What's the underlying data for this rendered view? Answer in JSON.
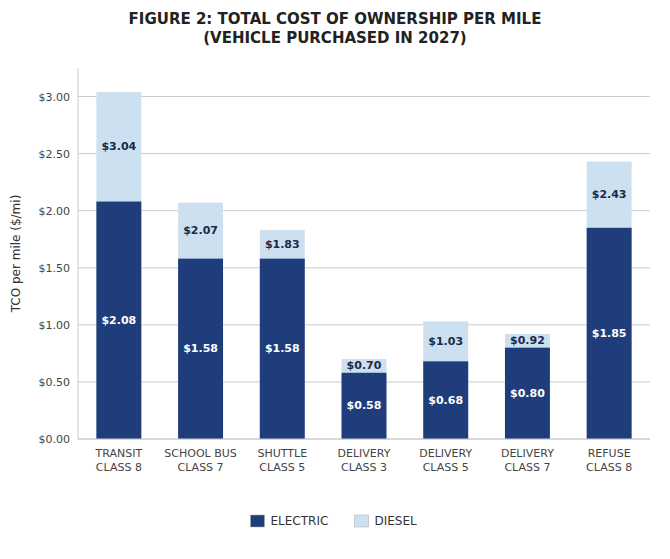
{
  "chart_data": {
    "type": "bar",
    "title": "FIGURE 2: TOTAL COST OF OWNERSHIP PER MILE\n(VEHICLE PURCHASED IN 2027)",
    "ylabel": "TCO per mile ($/mi)",
    "categories": [
      "TRANSIT\nCLASS 8",
      "SCHOOL BUS\nCLASS 7",
      "SHUTTLE\nCLASS 5",
      "DELIVERY\nCLASS 3",
      "DELIVERY\nCLASS 5",
      "DELIVERY\nCLASS 7",
      "REFUSE\nCLASS 8"
    ],
    "series": [
      {
        "name": "ELECTRIC",
        "color": "#1f3d7a",
        "values": [
          2.08,
          1.58,
          1.58,
          0.58,
          0.68,
          0.8,
          1.85
        ],
        "value_labels": [
          "$2.08",
          "$1.58",
          "$1.58",
          "$0.58",
          "$0.68",
          "$0.80",
          "$1.85"
        ]
      },
      {
        "name": "DIESEL",
        "color": "#cce0f0",
        "values": [
          3.04,
          2.07,
          1.83,
          0.7,
          1.03,
          0.92,
          2.43
        ],
        "value_labels": [
          "$3.04",
          "$2.07",
          "$1.83",
          "$0.70",
          "$1.03",
          "$0.92",
          "$2.43"
        ]
      }
    ],
    "ylim": [
      0,
      3.25
    ],
    "yticks": [
      {
        "value": 0.0,
        "label": "$0.00"
      },
      {
        "value": 0.5,
        "label": "$0.50"
      },
      {
        "value": 1.0,
        "label": "$1.00"
      },
      {
        "value": 1.5,
        "label": "$1.50"
      },
      {
        "value": 2.0,
        "label": "$2.00"
      },
      {
        "value": 2.5,
        "label": "$2.50"
      },
      {
        "value": 3.0,
        "label": "$3.00"
      }
    ],
    "grid": true,
    "legend": "bottom",
    "data_labels": true
  }
}
